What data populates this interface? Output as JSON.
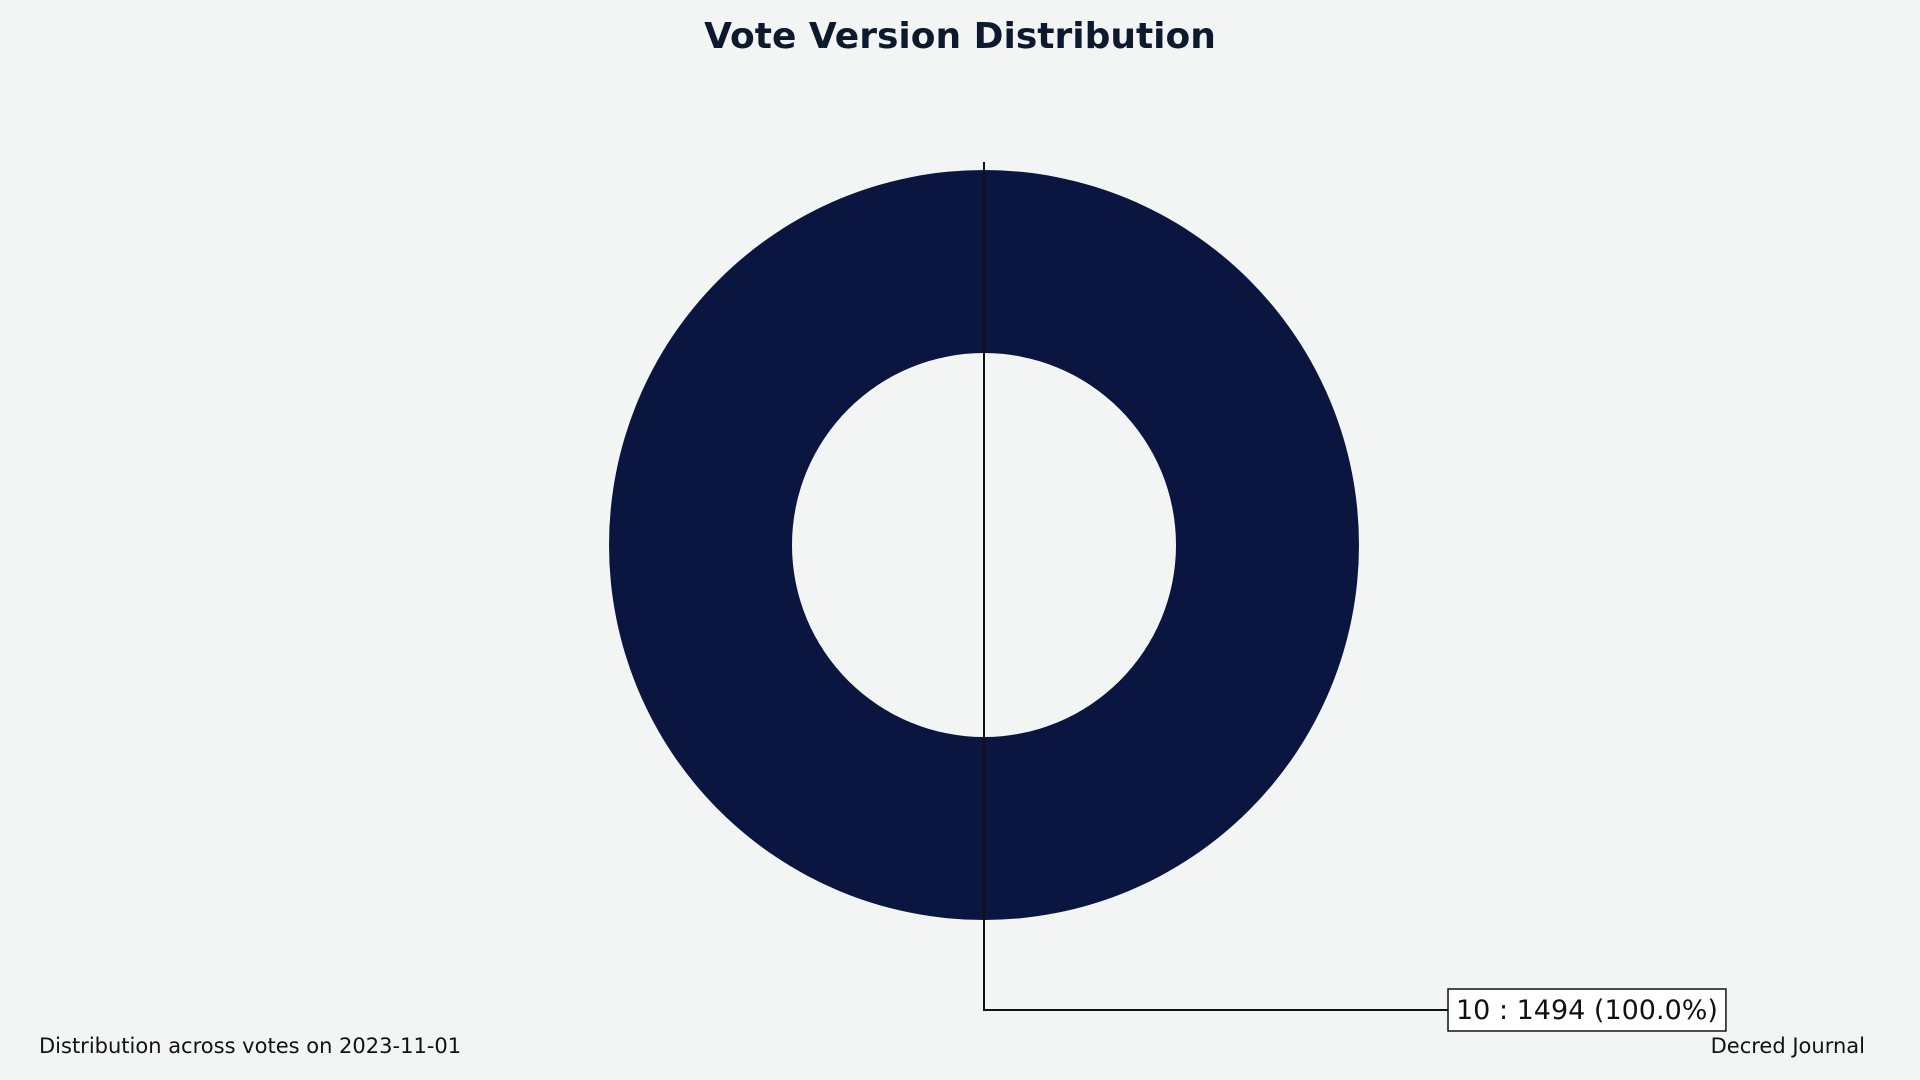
{
  "chart_data": {
    "type": "pie",
    "donut": true,
    "title": "Vote Version Distribution",
    "slices": [
      {
        "label": "10",
        "value": 1494,
        "percent": "100.0%",
        "color": "#0a1640",
        "annotation": "10 : 1494 (100.0%)"
      }
    ],
    "footer_left": "Distribution across votes on 2023-11-01",
    "footer_right": "Decred Journal",
    "background_color": "#f3f5f5"
  }
}
